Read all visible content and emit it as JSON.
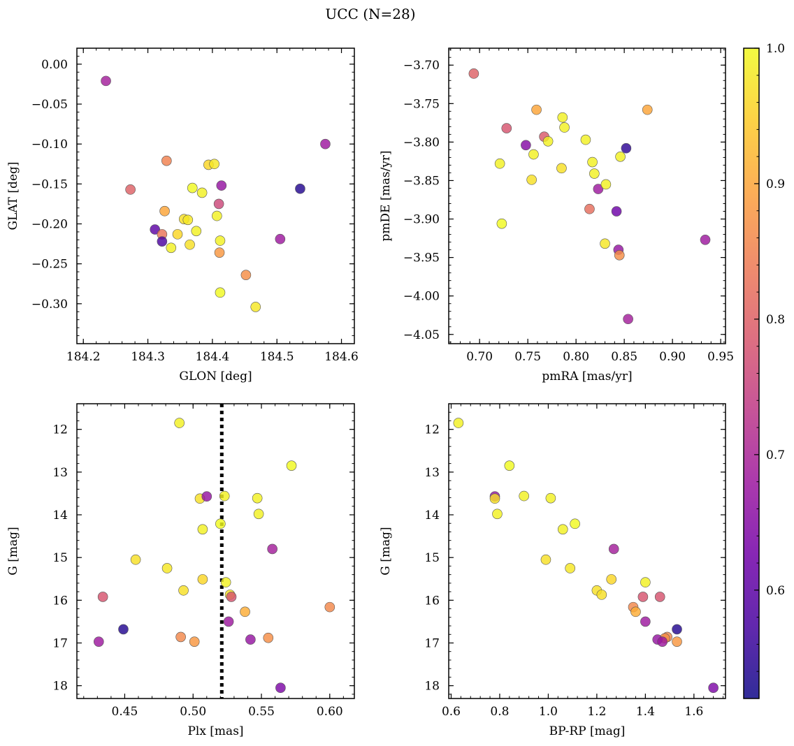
{
  "title": "UCC (N=28)",
  "colors": {
    "plasma": [
      "#0d0887",
      "#46039f",
      "#7201a8",
      "#9c179e",
      "#bd3786",
      "#d8576b",
      "#ed7953",
      "#fb9f3a",
      "#fdca26",
      "#f0f921"
    ],
    "dotted_line": "#000000",
    "marker_edge": "#555555"
  },
  "colorbar": {
    "min": 0.52,
    "max": 1.0,
    "ticks": [
      0.6,
      0.7,
      0.8,
      0.9,
      1.0
    ],
    "tick_labels": [
      "0.6",
      "0.7",
      "0.8",
      "0.9",
      "1.0"
    ]
  },
  "chart_data": [
    {
      "type": "scatter",
      "xlabel": "GLON [deg]",
      "ylabel": "GLAT [deg]",
      "xlim": [
        184.19,
        184.62
      ],
      "ylim": [
        -0.35,
        0.02
      ],
      "xticks": [
        184.2,
        184.3,
        184.4,
        184.5,
        184.6
      ],
      "xtick_labels": [
        "184.2",
        "184.3",
        "184.4",
        "184.5",
        "184.6"
      ],
      "yticks": [
        0.0,
        -0.05,
        -0.1,
        -0.15,
        -0.2,
        -0.25,
        -0.3
      ],
      "ytick_labels": [
        "0.00",
        "−0.05",
        "−0.10",
        "−0.15",
        "−0.20",
        "−0.25",
        "−0.30"
      ],
      "invert_y": false,
      "points": [
        {
          "x": 184.235,
          "y": -0.021,
          "p": 0.69
        },
        {
          "x": 184.273,
          "y": -0.157,
          "p": 0.8
        },
        {
          "x": 184.329,
          "y": -0.121,
          "p": 0.85
        },
        {
          "x": 184.326,
          "y": -0.184,
          "p": 0.9
        },
        {
          "x": 184.311,
          "y": -0.207,
          "p": 0.6
        },
        {
          "x": 184.322,
          "y": -0.213,
          "p": 0.83
        },
        {
          "x": 184.322,
          "y": -0.222,
          "p": 0.58
        },
        {
          "x": 184.336,
          "y": -0.23,
          "p": 0.99
        },
        {
          "x": 184.346,
          "y": -0.213,
          "p": 0.96
        },
        {
          "x": 184.356,
          "y": -0.194,
          "p": 0.97
        },
        {
          "x": 184.362,
          "y": -0.195,
          "p": 0.98
        },
        {
          "x": 184.365,
          "y": -0.226,
          "p": 0.97
        },
        {
          "x": 184.369,
          "y": -0.155,
          "p": 1.0
        },
        {
          "x": 184.375,
          "y": -0.209,
          "p": 0.99
        },
        {
          "x": 184.384,
          "y": -0.161,
          "p": 0.99
        },
        {
          "x": 184.394,
          "y": -0.126,
          "p": 0.96
        },
        {
          "x": 184.403,
          "y": -0.125,
          "p": 0.98
        },
        {
          "x": 184.407,
          "y": -0.19,
          "p": 0.99
        },
        {
          "x": 184.41,
          "y": -0.175,
          "p": 0.76
        },
        {
          "x": 184.412,
          "y": -0.221,
          "p": 0.99
        },
        {
          "x": 184.414,
          "y": -0.152,
          "p": 0.67
        },
        {
          "x": 184.411,
          "y": -0.236,
          "p": 0.88
        },
        {
          "x": 184.412,
          "y": -0.286,
          "p": 1.0
        },
        {
          "x": 184.452,
          "y": -0.264,
          "p": 0.87
        },
        {
          "x": 184.467,
          "y": -0.304,
          "p": 0.98
        },
        {
          "x": 184.505,
          "y": -0.219,
          "p": 0.68
        },
        {
          "x": 184.536,
          "y": -0.156,
          "p": 0.54
        },
        {
          "x": 184.575,
          "y": -0.1,
          "p": 0.68
        }
      ]
    },
    {
      "type": "scatter",
      "xlabel": "pmRA [mas/yr]",
      "ylabel": "pmDE [mas/yr]",
      "xlim": [
        0.668,
        0.955
      ],
      "ylim": [
        -4.062,
        -3.678
      ],
      "xticks": [
        0.7,
        0.75,
        0.8,
        0.85,
        0.9,
        0.95
      ],
      "xtick_labels": [
        "0.70",
        "0.75",
        "0.80",
        "0.85",
        "0.90",
        "0.95"
      ],
      "yticks": [
        -3.7,
        -3.75,
        -3.8,
        -3.85,
        -3.9,
        -3.95,
        -4.0,
        -4.05
      ],
      "ytick_labels": [
        "−3.70",
        "−3.75",
        "−3.80",
        "−3.85",
        "−3.90",
        "−3.95",
        "−4.00",
        "−4.05"
      ],
      "invert_y": false,
      "points": [
        {
          "x": 0.694,
          "y": -3.711,
          "p": 0.8
        },
        {
          "x": 0.728,
          "y": -3.782,
          "p": 0.78
        },
        {
          "x": 0.721,
          "y": -3.828,
          "p": 0.99
        },
        {
          "x": 0.723,
          "y": -3.906,
          "p": 1.0
        },
        {
          "x": 0.748,
          "y": -3.804,
          "p": 0.65
        },
        {
          "x": 0.756,
          "y": -3.816,
          "p": 0.99
        },
        {
          "x": 0.754,
          "y": -3.849,
          "p": 0.97
        },
        {
          "x": 0.759,
          "y": -3.758,
          "p": 0.9
        },
        {
          "x": 0.767,
          "y": -3.793,
          "p": 0.79
        },
        {
          "x": 0.771,
          "y": -3.799,
          "p": 0.99
        },
        {
          "x": 0.786,
          "y": -3.768,
          "p": 0.99
        },
        {
          "x": 0.788,
          "y": -3.781,
          "p": 0.99
        },
        {
          "x": 0.785,
          "y": -3.834,
          "p": 0.97
        },
        {
          "x": 0.81,
          "y": -3.797,
          "p": 0.99
        },
        {
          "x": 0.817,
          "y": -3.826,
          "p": 0.99
        },
        {
          "x": 0.819,
          "y": -3.841,
          "p": 0.99
        },
        {
          "x": 0.814,
          "y": -3.887,
          "p": 0.82
        },
        {
          "x": 0.823,
          "y": -3.861,
          "p": 0.68
        },
        {
          "x": 0.831,
          "y": -3.855,
          "p": 0.99
        },
        {
          "x": 0.83,
          "y": -3.932,
          "p": 0.98
        },
        {
          "x": 0.842,
          "y": -3.89,
          "p": 0.62
        },
        {
          "x": 0.844,
          "y": -3.94,
          "p": 0.67
        },
        {
          "x": 0.845,
          "y": -3.947,
          "p": 0.87
        },
        {
          "x": 0.846,
          "y": -3.819,
          "p": 0.99
        },
        {
          "x": 0.852,
          "y": -3.808,
          "p": 0.55
        },
        {
          "x": 0.854,
          "y": -4.03,
          "p": 0.69
        },
        {
          "x": 0.874,
          "y": -3.758,
          "p": 0.9
        },
        {
          "x": 0.934,
          "y": -3.927,
          "p": 0.68
        }
      ]
    },
    {
      "type": "scatter",
      "xlabel": "Plx [mas]",
      "ylabel": "G [mag]",
      "xlim": [
        0.415,
        0.618
      ],
      "ylim": [
        11.4,
        18.3
      ],
      "xticks": [
        0.45,
        0.5,
        0.55,
        0.6
      ],
      "xtick_labels": [
        "0.45",
        "0.50",
        "0.55",
        "0.60"
      ],
      "yticks": [
        12,
        13,
        14,
        15,
        16,
        17,
        18
      ],
      "ytick_labels": [
        "12",
        "13",
        "14",
        "15",
        "16",
        "17",
        "18"
      ],
      "invert_y": true,
      "vline": 0.521,
      "points": [
        {
          "x": 0.49,
          "y": 11.85,
          "p": 0.99
        },
        {
          "x": 0.572,
          "y": 12.85,
          "p": 1.0
        },
        {
          "x": 0.505,
          "y": 13.62,
          "p": 0.97
        },
        {
          "x": 0.51,
          "y": 13.57,
          "p": 0.67
        },
        {
          "x": 0.523,
          "y": 13.56,
          "p": 0.99
        },
        {
          "x": 0.547,
          "y": 13.61,
          "p": 0.99
        },
        {
          "x": 0.548,
          "y": 13.98,
          "p": 0.99
        },
        {
          "x": 0.52,
          "y": 14.21,
          "p": 1.0
        },
        {
          "x": 0.507,
          "y": 14.34,
          "p": 0.99
        },
        {
          "x": 0.558,
          "y": 14.8,
          "p": 0.69
        },
        {
          "x": 0.458,
          "y": 15.05,
          "p": 0.97
        },
        {
          "x": 0.481,
          "y": 15.25,
          "p": 0.98
        },
        {
          "x": 0.507,
          "y": 15.51,
          "p": 0.96
        },
        {
          "x": 0.524,
          "y": 15.58,
          "p": 0.99
        },
        {
          "x": 0.493,
          "y": 15.77,
          "p": 0.97
        },
        {
          "x": 0.527,
          "y": 15.87,
          "p": 0.97
        },
        {
          "x": 0.528,
          "y": 15.92,
          "p": 0.78
        },
        {
          "x": 0.434,
          "y": 15.92,
          "p": 0.78
        },
        {
          "x": 0.6,
          "y": 16.16,
          "p": 0.86
        },
        {
          "x": 0.538,
          "y": 16.27,
          "p": 0.91
        },
        {
          "x": 0.449,
          "y": 16.68,
          "p": 0.54
        },
        {
          "x": 0.526,
          "y": 16.5,
          "p": 0.68
        },
        {
          "x": 0.491,
          "y": 16.86,
          "p": 0.86
        },
        {
          "x": 0.501,
          "y": 16.97,
          "p": 0.88
        },
        {
          "x": 0.431,
          "y": 16.97,
          "p": 0.68
        },
        {
          "x": 0.542,
          "y": 16.92,
          "p": 0.67
        },
        {
          "x": 0.555,
          "y": 16.88,
          "p": 0.87
        },
        {
          "x": 0.564,
          "y": 18.05,
          "p": 0.64
        }
      ]
    },
    {
      "type": "scatter",
      "xlabel": "BP-RP [mag]",
      "ylabel": "G [mag]",
      "xlim": [
        0.59,
        1.73
      ],
      "ylim": [
        11.4,
        18.3
      ],
      "xticks": [
        0.6,
        0.8,
        1.0,
        1.2,
        1.4,
        1.6
      ],
      "xtick_labels": [
        "0.6",
        "0.8",
        "1.0",
        "1.2",
        "1.4",
        "1.6"
      ],
      "yticks": [
        12,
        13,
        14,
        15,
        16,
        17,
        18
      ],
      "ytick_labels": [
        "12",
        "13",
        "14",
        "15",
        "16",
        "17",
        "18"
      ],
      "invert_y": true,
      "points": [
        {
          "x": 0.63,
          "y": 11.85,
          "p": 0.99
        },
        {
          "x": 0.84,
          "y": 12.85,
          "p": 1.0
        },
        {
          "x": 0.78,
          "y": 13.57,
          "p": 0.67
        },
        {
          "x": 0.78,
          "y": 13.62,
          "p": 0.97
        },
        {
          "x": 0.9,
          "y": 13.56,
          "p": 0.99
        },
        {
          "x": 1.01,
          "y": 13.61,
          "p": 0.99
        },
        {
          "x": 0.79,
          "y": 13.98,
          "p": 0.99
        },
        {
          "x": 1.11,
          "y": 14.21,
          "p": 1.0
        },
        {
          "x": 1.06,
          "y": 14.34,
          "p": 0.99
        },
        {
          "x": 1.27,
          "y": 14.8,
          "p": 0.69
        },
        {
          "x": 0.99,
          "y": 15.05,
          "p": 0.97
        },
        {
          "x": 1.09,
          "y": 15.25,
          "p": 0.98
        },
        {
          "x": 1.26,
          "y": 15.51,
          "p": 0.96
        },
        {
          "x": 1.4,
          "y": 15.58,
          "p": 0.99
        },
        {
          "x": 1.2,
          "y": 15.77,
          "p": 0.97
        },
        {
          "x": 1.22,
          "y": 15.87,
          "p": 0.97
        },
        {
          "x": 1.39,
          "y": 15.92,
          "p": 0.78
        },
        {
          "x": 1.46,
          "y": 15.92,
          "p": 0.78
        },
        {
          "x": 1.35,
          "y": 16.16,
          "p": 0.86
        },
        {
          "x": 1.36,
          "y": 16.27,
          "p": 0.91
        },
        {
          "x": 1.4,
          "y": 16.5,
          "p": 0.68
        },
        {
          "x": 1.53,
          "y": 16.68,
          "p": 0.54
        },
        {
          "x": 1.49,
          "y": 16.86,
          "p": 0.86
        },
        {
          "x": 1.48,
          "y": 16.89,
          "p": 0.87
        },
        {
          "x": 1.45,
          "y": 16.92,
          "p": 0.67
        },
        {
          "x": 1.47,
          "y": 16.97,
          "p": 0.68
        },
        {
          "x": 1.53,
          "y": 16.97,
          "p": 0.88
        },
        {
          "x": 1.68,
          "y": 18.05,
          "p": 0.64
        }
      ]
    }
  ]
}
